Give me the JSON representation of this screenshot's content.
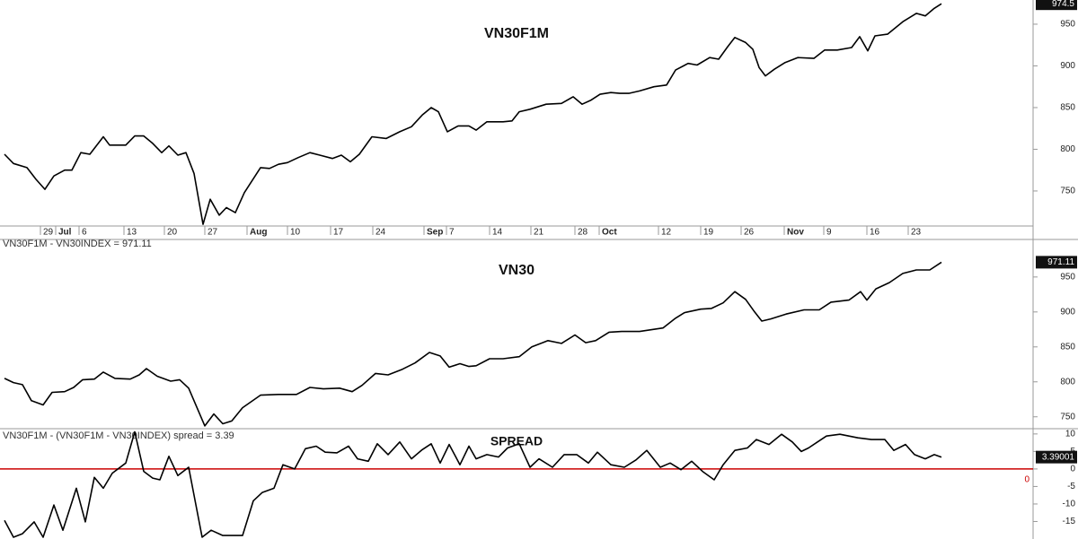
{
  "chart_data": [
    {
      "type": "line",
      "title": "VN30F1M",
      "color": "#000000",
      "xlim": [
        0,
        1150
      ],
      "ylim": [
        708,
        979
      ],
      "yticks": [
        750,
        800,
        850,
        900,
        950
      ],
      "xticks": [
        {
          "value": 45,
          "label": "29"
        },
        {
          "value": 62,
          "label": "Jul"
        },
        {
          "value": 88,
          "label": "6"
        },
        {
          "value": 138,
          "label": "13"
        },
        {
          "value": 183,
          "label": "20"
        },
        {
          "value": 228,
          "label": "27"
        },
        {
          "value": 275,
          "label": "Aug"
        },
        {
          "value": 320,
          "label": "10"
        },
        {
          "value": 368,
          "label": "17"
        },
        {
          "value": 415,
          "label": "24"
        },
        {
          "value": 472,
          "label": "Sep"
        },
        {
          "value": 497,
          "label": "7"
        },
        {
          "value": 545,
          "label": "14"
        },
        {
          "value": 591,
          "label": "21"
        },
        {
          "value": 640,
          "label": "28"
        },
        {
          "value": 667,
          "label": "Oct"
        },
        {
          "value": 733,
          "label": "12"
        },
        {
          "value": 780,
          "label": "19"
        },
        {
          "value": 825,
          "label": "26"
        },
        {
          "value": 873,
          "label": "Nov"
        },
        {
          "value": 917,
          "label": "9"
        },
        {
          "value": 965,
          "label": "16"
        },
        {
          "value": 1011,
          "label": "23"
        }
      ],
      "x": [
        5,
        15,
        30,
        40,
        50,
        60,
        72,
        80,
        90,
        100,
        115,
        122,
        140,
        150,
        160,
        170,
        180,
        188,
        198,
        207,
        216,
        226,
        234,
        244,
        252,
        262,
        272,
        290,
        300,
        310,
        320,
        332,
        345,
        356,
        370,
        380,
        390,
        400,
        414,
        430,
        445,
        458,
        470,
        480,
        488,
        498,
        510,
        522,
        530,
        542,
        560,
        570,
        578,
        590,
        608,
        625,
        638,
        648,
        658,
        668,
        680,
        690,
        700,
        712,
        728,
        742,
        752,
        766,
        776,
        790,
        800,
        810,
        818,
        830,
        838,
        845,
        852,
        862,
        874,
        888,
        906,
        918,
        932,
        948,
        957,
        966,
        974,
        988,
        1005,
        1020,
        1030,
        1040,
        1048
      ],
      "values": [
        794,
        783,
        778,
        764,
        752,
        768,
        775,
        775,
        796,
        794,
        815,
        805,
        805,
        816,
        816,
        807,
        796,
        804,
        793,
        796,
        771,
        710,
        740,
        721,
        730,
        724,
        748,
        778,
        777,
        782,
        784,
        790,
        796,
        793,
        789,
        793,
        785,
        794,
        815,
        813,
        821,
        827,
        841,
        850,
        845,
        821,
        828,
        828,
        823,
        833,
        833,
        834,
        845,
        848,
        854,
        855,
        863,
        854,
        859,
        866,
        868,
        867,
        867,
        870,
        875,
        877,
        895,
        903,
        901,
        910,
        908,
        923,
        934,
        928,
        920,
        898,
        888,
        896,
        904,
        910,
        909,
        919,
        919,
        922,
        935,
        918,
        936,
        938,
        953,
        963,
        960,
        969,
        974.5
      ]
    },
    {
      "type": "line",
      "title": "VN30",
      "subtitle": "VN30F1M - VN30INDEX = 971.11",
      "color": "#000000",
      "xlim": [
        0,
        1150
      ],
      "ylim": [
        733,
        987
      ],
      "yticks": [
        750,
        800,
        850,
        900,
        950
      ],
      "x": [
        5,
        15,
        25,
        35,
        48,
        58,
        72,
        82,
        92,
        105,
        115,
        128,
        145,
        155,
        163,
        175,
        190,
        200,
        210,
        228,
        238,
        248,
        258,
        270,
        290,
        310,
        330,
        345,
        360,
        378,
        392,
        403,
        418,
        432,
        448,
        462,
        478,
        490,
        500,
        512,
        522,
        530,
        545,
        560,
        578,
        592,
        610,
        625,
        640,
        652,
        663,
        678,
        692,
        712,
        738,
        752,
        762,
        780,
        792,
        805,
        818,
        830,
        840,
        848,
        858,
        875,
        895,
        912,
        925,
        945,
        958,
        965,
        975,
        990,
        1005,
        1020,
        1035,
        1048
      ],
      "values": [
        805,
        799,
        796,
        773,
        767,
        785,
        786,
        792,
        803,
        804,
        814,
        805,
        804,
        810,
        819,
        808,
        801,
        803,
        791,
        737,
        754,
        740,
        744,
        763,
        781,
        782,
        782,
        792,
        790,
        791,
        786,
        795,
        812,
        810,
        818,
        827,
        842,
        837,
        821,
        826,
        822,
        823,
        833,
        833,
        836,
        850,
        859,
        855,
        867,
        856,
        859,
        871,
        872,
        872,
        877,
        891,
        899,
        904,
        905,
        913,
        929,
        918,
        900,
        887,
        890,
        897,
        903,
        903,
        914,
        917,
        929,
        917,
        933,
        942,
        955,
        960,
        960,
        971.11
      ]
    },
    {
      "type": "line",
      "title": "SPREAD",
      "subtitle": "VN30F1M - (VN30F1M - VN30INDEX) spread = 3.39",
      "color": "#000000",
      "last_value_label": "3.39001",
      "ref_line": {
        "value": 0,
        "color": "#cc0000"
      },
      "xlim": [
        0,
        1150
      ],
      "ylim": [
        -20,
        11.5
      ],
      "yticks": [
        10,
        5,
        0,
        -5,
        -10,
        -15
      ],
      "x": [
        5,
        15,
        25,
        38,
        48,
        60,
        70,
        85,
        95,
        105,
        115,
        125,
        140,
        150,
        160,
        170,
        178,
        188,
        198,
        210,
        225,
        235,
        248,
        270,
        282,
        292,
        305,
        315,
        328,
        340,
        352,
        362,
        375,
        388,
        398,
        410,
        420,
        432,
        445,
        458,
        470,
        480,
        490,
        500,
        512,
        522,
        530,
        542,
        555,
        565,
        578,
        590,
        600,
        615,
        628,
        642,
        655,
        665,
        680,
        695,
        708,
        720,
        735,
        746,
        758,
        770,
        782,
        795,
        805,
        818,
        832,
        842,
        856,
        870,
        882,
        892,
        900,
        910,
        920,
        935,
        945,
        955,
        970,
        985,
        995,
        1008,
        1018,
        1030,
        1040,
        1048
      ],
      "values": [
        -14.7,
        -19.5,
        -18.5,
        -15.1,
        -19.5,
        -10.3,
        -17.5,
        -5.5,
        -15.1,
        -2.4,
        -5.5,
        -1.2,
        1.7,
        10.6,
        -0.7,
        -2.6,
        -3.1,
        3.6,
        -1.9,
        0.5,
        -19.5,
        -17.5,
        -19,
        -19,
        -9.1,
        -6.7,
        -5.5,
        1.2,
        0,
        5.8,
        6.5,
        4.8,
        4.6,
        6.5,
        2.9,
        2.2,
        7.2,
        4.1,
        7.7,
        2.9,
        5.5,
        7.2,
        1.7,
        7,
        1.2,
        6.5,
        2.9,
        4.1,
        3.4,
        6,
        7.2,
        0.5,
        2.9,
        0.5,
        4.1,
        4.1,
        1.7,
        4.8,
        1.2,
        0.5,
        2.6,
        5.3,
        0.5,
        1.7,
        -0.2,
        2.2,
        -0.7,
        -3.1,
        1.2,
        5.3,
        6,
        8.4,
        7,
        9.9,
        7.7,
        5,
        6,
        7.7,
        9.4,
        9.9,
        9.4,
        8.9,
        8.4,
        8.4,
        5.3,
        7,
        4.1,
        2.9,
        4.1,
        3.39
      ]
    }
  ]
}
